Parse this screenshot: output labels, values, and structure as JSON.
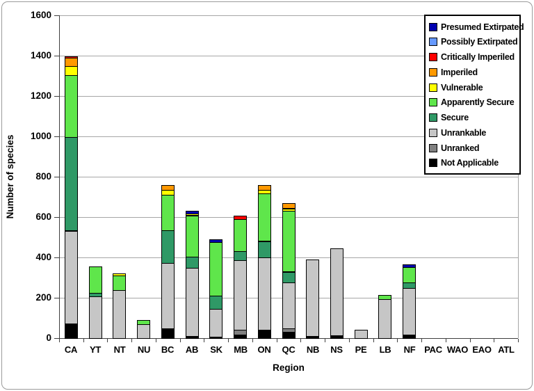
{
  "chart_data": {
    "type": "bar",
    "stacked": true,
    "title": "",
    "xlabel": "Region",
    "ylabel": "Number of species",
    "ylim": [
      0,
      1600
    ],
    "ytick_step": 200,
    "grid": true,
    "legend_position": "top-right",
    "categories": [
      "CA",
      "YT",
      "NT",
      "NU",
      "BC",
      "AB",
      "SK",
      "MB",
      "ON",
      "QC",
      "NB",
      "NS",
      "PE",
      "LB",
      "NF",
      "PAC",
      "WAO",
      "EAO",
      "ATL"
    ],
    "series": [
      {
        "name": "Not Applicable",
        "color": "#000000",
        "values": [
          72,
          0,
          0,
          0,
          48,
          10,
          8,
          15,
          40,
          31,
          10,
          15,
          0,
          0,
          18,
          0,
          0,
          0,
          0
        ]
      },
      {
        "name": "Unranked",
        "color": "#808080",
        "values": [
          0,
          0,
          0,
          0,
          0,
          0,
          0,
          25,
          0,
          17,
          0,
          0,
          0,
          0,
          0,
          0,
          0,
          0,
          0
        ]
      },
      {
        "name": "Unrankable",
        "color": "#C6C6C6",
        "values": [
          460,
          208,
          240,
          70,
          324,
          339,
          137,
          345,
          360,
          228,
          379,
          430,
          42,
          195,
          232,
          0,
          0,
          0,
          0
        ]
      },
      {
        "name": "Secure",
        "color": "#2F9966",
        "values": [
          463,
          16,
          0,
          0,
          161,
          54,
          65,
          45,
          81,
          52,
          0,
          0,
          0,
          0,
          27,
          0,
          0,
          0,
          0
        ]
      },
      {
        "name": "Apparently Secure",
        "color": "#5FE64B",
        "values": [
          308,
          132,
          71,
          20,
          177,
          205,
          265,
          160,
          236,
          305,
          0,
          0,
          0,
          20,
          75,
          0,
          0,
          0,
          0
        ]
      },
      {
        "name": "Vulnerable",
        "color": "#FFFF00",
        "values": [
          45,
          0,
          9,
          0,
          25,
          8,
          0,
          0,
          20,
          10,
          0,
          0,
          0,
          0,
          0,
          0,
          0,
          0,
          0
        ]
      },
      {
        "name": "Imperiled",
        "color": "#FF9900",
        "values": [
          42,
          0,
          0,
          0,
          23,
          0,
          0,
          0,
          23,
          25,
          0,
          0,
          0,
          0,
          0,
          0,
          0,
          0,
          0
        ]
      },
      {
        "name": "Critically Imperiled",
        "color": "#FF0000",
        "values": [
          8,
          0,
          0,
          0,
          0,
          0,
          0,
          18,
          0,
          0,
          0,
          0,
          0,
          0,
          0,
          0,
          0,
          0,
          0
        ]
      },
      {
        "name": "Possibly Extirpated",
        "color": "#6699FF",
        "values": [
          0,
          0,
          0,
          0,
          0,
          0,
          0,
          0,
          0,
          0,
          0,
          0,
          0,
          0,
          0,
          0,
          0,
          0,
          0
        ]
      },
      {
        "name": "Presumed Extirpated",
        "color": "#0000B0",
        "values": [
          0,
          0,
          0,
          0,
          0,
          15,
          15,
          0,
          0,
          0,
          0,
          0,
          0,
          0,
          13,
          0,
          0,
          0,
          0
        ]
      }
    ],
    "legend_order_top_to_bottom": [
      "Presumed Extirpated",
      "Possibly Extirpated",
      "Critically Imperiled",
      "Imperiled",
      "Vulnerable",
      "Apparently Secure",
      "Secure",
      "Unrankable",
      "Unranked",
      "Not Applicable"
    ],
    "y_tick_labels": [
      "0",
      "200",
      "400",
      "600",
      "800",
      "1000",
      "1200",
      "1400",
      "1600"
    ]
  }
}
